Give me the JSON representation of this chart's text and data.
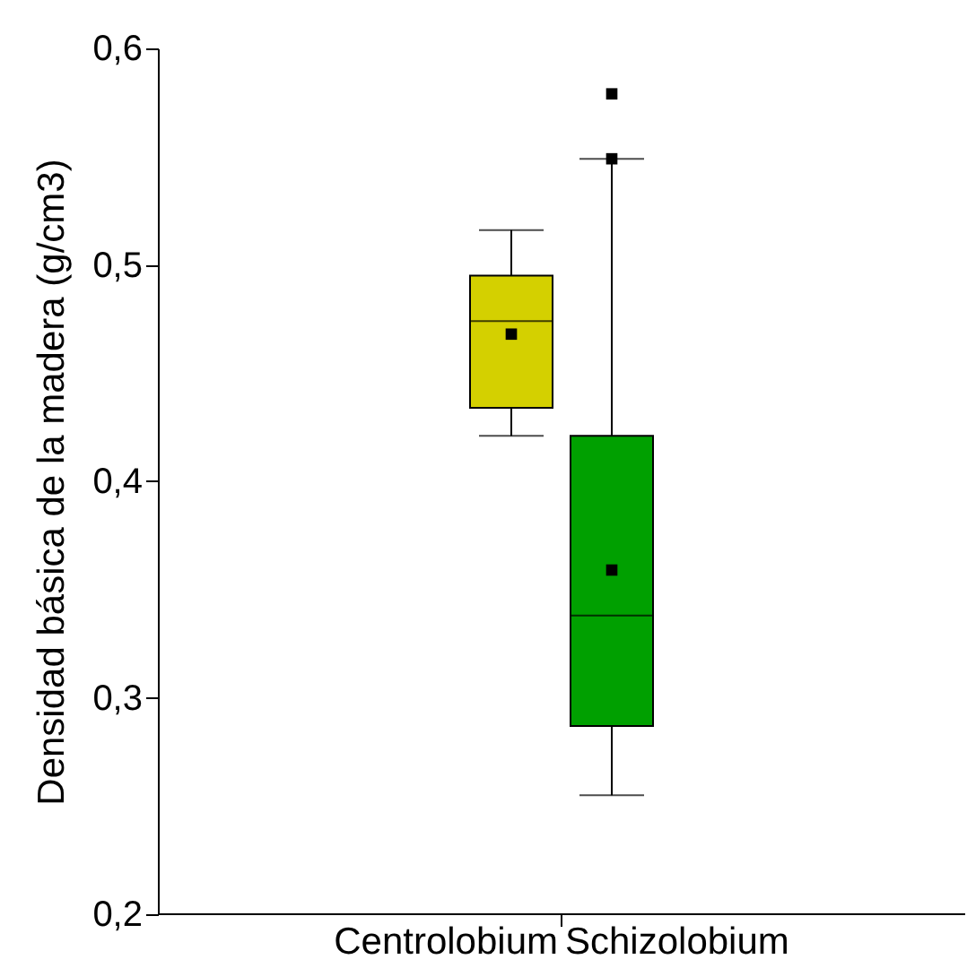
{
  "chart_data": {
    "type": "box",
    "ylabel": "Densidad básica de la madera (g/cm3)",
    "categories": [
      "Centrolobium",
      "Schizolobium"
    ],
    "colors": [
      "#d4d000",
      "#00a000"
    ],
    "boxes": [
      {
        "low": 0.421,
        "q1": 0.434,
        "median": 0.474,
        "q3": 0.495,
        "high": 0.516,
        "mean": 0.468
      },
      {
        "low": 0.255,
        "q1": 0.287,
        "median": 0.338,
        "q3": 0.421,
        "high": 0.549,
        "mean": 0.359,
        "outliers": [
          0.549,
          0.579
        ]
      }
    ],
    "ylim": [
      0.2,
      0.6
    ],
    "yticks": [
      {
        "value": 0.2,
        "label": "0,2"
      },
      {
        "value": 0.3,
        "label": "0,3"
      },
      {
        "value": 0.4,
        "label": "0,4"
      },
      {
        "value": 0.5,
        "label": "0,5"
      },
      {
        "value": 0.6,
        "label": "0,6"
      }
    ],
    "grid": false,
    "marker": "square"
  }
}
